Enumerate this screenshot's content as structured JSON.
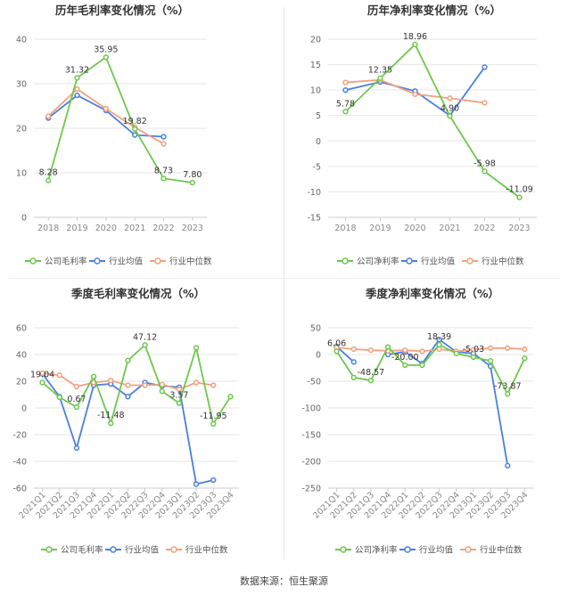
{
  "source": "数据来源：恒生聚源",
  "chart_data": [
    {
      "type": "line",
      "title": "历年毛利率变化情况（%）",
      "categories": [
        "2018",
        "2019",
        "2020",
        "2021",
        "2022",
        "2023"
      ],
      "ylim": [
        0,
        40
      ],
      "yticks": [
        0,
        10,
        20,
        30,
        40
      ],
      "grid": true,
      "legend_placement": "bottom",
      "series": [
        {
          "name": "公司毛利率",
          "color": "#6dc84c",
          "values": [
            8.28,
            31.32,
            35.95,
            19.82,
            8.73,
            7.8
          ],
          "labels": [
            "8.28",
            "31.32",
            "35.95",
            "19.82",
            "8.73",
            "7.80"
          ]
        },
        {
          "name": "行业均值",
          "color": "#4a7fe0",
          "values": [
            22.3,
            27.4,
            24.0,
            18.5,
            18.1,
            null
          ]
        },
        {
          "name": "行业中位数",
          "color": "#f4a07c",
          "values": [
            22.7,
            28.8,
            24.4,
            20.2,
            16.5,
            null
          ]
        }
      ]
    },
    {
      "type": "line",
      "title": "历年净利率变化情况（%）",
      "categories": [
        "2018",
        "2019",
        "2020",
        "2021",
        "2022",
        "2023"
      ],
      "ylim": [
        -15,
        20
      ],
      "yticks": [
        -15,
        -10,
        -5,
        0,
        5,
        10,
        15,
        20
      ],
      "grid": true,
      "legend_placement": "bottom",
      "series": [
        {
          "name": "公司净利率",
          "color": "#6dc84c",
          "values": [
            5.78,
            12.35,
            18.96,
            4.9,
            -5.98,
            -11.09
          ],
          "labels": [
            "5.78",
            "12.35",
            "18.96",
            "4.90",
            "-5.98",
            "-11.09"
          ]
        },
        {
          "name": "行业均值",
          "color": "#4a7fe0",
          "values": [
            10.0,
            11.6,
            9.8,
            5.0,
            14.5,
            null
          ]
        },
        {
          "name": "行业中位数",
          "color": "#f4a07c",
          "values": [
            11.5,
            12.0,
            9.2,
            8.4,
            7.5,
            null
          ]
        }
      ]
    },
    {
      "type": "line",
      "title": "季度毛利率变化情况（%）",
      "categories": [
        "2021Q1",
        "2021Q2",
        "2021Q3",
        "2021Q4",
        "2022Q1",
        "2022Q2",
        "2022Q3",
        "2022Q4",
        "2023Q1",
        "2023Q2",
        "2023Q3",
        "2023Q4"
      ],
      "ylim": [
        -60,
        60
      ],
      "yticks": [
        -60,
        -40,
        -20,
        0,
        20,
        40,
        60
      ],
      "grid": true,
      "legend_placement": "bottom",
      "series": [
        {
          "name": "公司毛利率",
          "color": "#6dc84c",
          "values": [
            19.04,
            8.0,
            0.67,
            23.5,
            -11.48,
            35.5,
            47.12,
            12.5,
            3.57,
            45.0,
            -11.95,
            8.5
          ],
          "labels": [
            "19.04",
            "",
            "0.67",
            "",
            "-11.48",
            "",
            "47.12",
            "",
            "3.57",
            "",
            "-11.95",
            ""
          ]
        },
        {
          "name": "行业均值",
          "color": "#4a7fe0",
          "values": [
            25.5,
            8.5,
            -30.0,
            17.0,
            18.0,
            8.5,
            19.0,
            16.5,
            15.5,
            -57.0,
            -54.0,
            null
          ]
        },
        {
          "name": "行业中位数",
          "color": "#f4a07c",
          "values": [
            26.0,
            24.5,
            16.0,
            19.0,
            20.5,
            17.0,
            17.0,
            17.5,
            14.0,
            19.0,
            17.0,
            null
          ]
        }
      ]
    },
    {
      "type": "line",
      "title": "季度净利率变化情况（%）",
      "categories": [
        "2021Q1",
        "2021Q2",
        "2021Q3",
        "2021Q4",
        "2022Q1",
        "2022Q2",
        "2022Q3",
        "2022Q4",
        "2023Q1",
        "2023Q2",
        "2023Q3",
        "2023Q4"
      ],
      "ylim": [
        -250,
        50
      ],
      "yticks": [
        -250,
        -200,
        -150,
        -100,
        -50,
        0,
        50
      ],
      "grid": true,
      "legend_placement": "bottom",
      "series": [
        {
          "name": "公司净利率",
          "color": "#6dc84c",
          "values": [
            6.06,
            -43.0,
            -48.57,
            14.0,
            -20.0,
            -20.0,
            18.39,
            2.0,
            -5.03,
            -12.0,
            -73.87,
            -7.0
          ],
          "labels": [
            "6.06",
            "",
            "-48.57",
            "",
            "-20.00",
            "",
            "18.39",
            "",
            "-5.03",
            "",
            "-73.87",
            ""
          ]
        },
        {
          "name": "行业均值",
          "color": "#4a7fe0",
          "values": [
            15.0,
            -14.0,
            null,
            0.0,
            5.0,
            -17.0,
            28.0,
            5.0,
            2.0,
            -22.0,
            -208.0,
            null
          ]
        },
        {
          "name": "行业中位数",
          "color": "#f4a07c",
          "values": [
            13.0,
            10.0,
            8.0,
            7.0,
            8.0,
            6.0,
            10.0,
            6.0,
            9.0,
            12.0,
            12.0,
            10.0
          ]
        }
      ]
    }
  ]
}
